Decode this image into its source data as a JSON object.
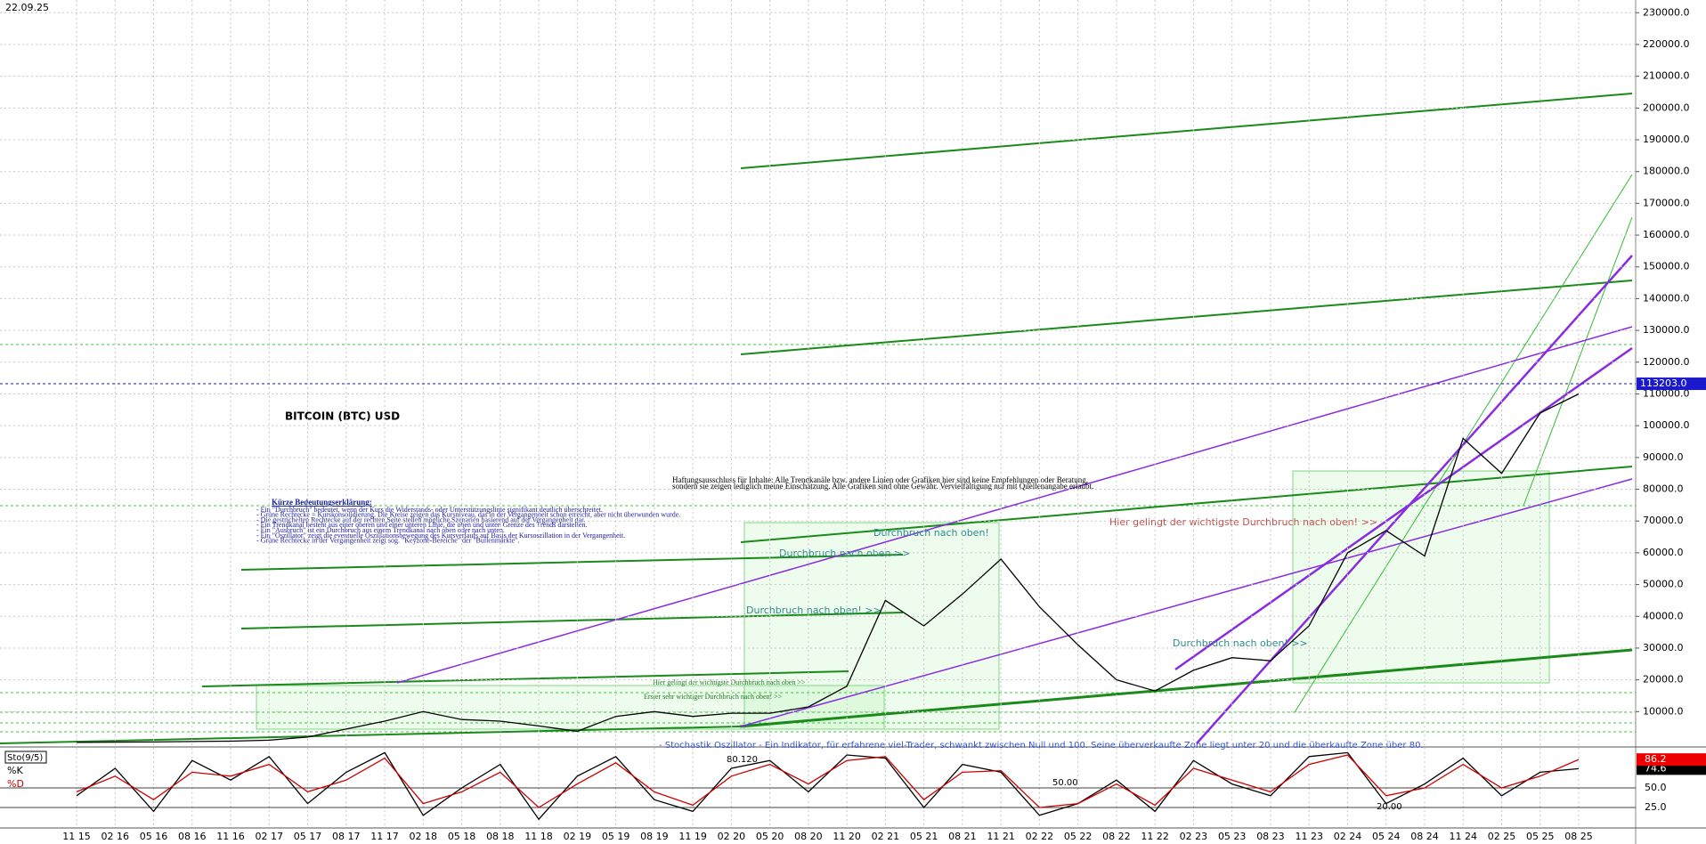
{
  "date_label": "22.09.25",
  "chart_data": [
    {
      "type": "line",
      "title": "BITCOIN (BTC) USD",
      "categories": [
        "11 15",
        "02 16",
        "05 16",
        "08 16",
        "11 16",
        "02 17",
        "05 17",
        "08 17",
        "11 17",
        "02 18",
        "05 18",
        "08 18",
        "11 18",
        "02 19",
        "05 19",
        "08 19",
        "11 19",
        "02 20",
        "05 20",
        "08 20",
        "11 20",
        "02 21",
        "05 21",
        "08 21",
        "11 21",
        "02 22",
        "05 22",
        "08 22",
        "11 22",
        "02 23",
        "05 23",
        "08 23",
        "11 23",
        "02 24",
        "05 24",
        "08 24",
        "11 24",
        "02 25",
        "05 25",
        "08 25"
      ],
      "series": [
        {
          "name": "BTC",
          "color": "#000000",
          "values": [
            350,
            400,
            450,
            600,
            700,
            1000,
            2000,
            4500,
            7000,
            10000,
            7500,
            7000,
            5500,
            3800,
            8500,
            10000,
            8500,
            9500,
            9500,
            11500,
            18000,
            45000,
            37000,
            47000,
            58000,
            43000,
            31000,
            20000,
            16500,
            23000,
            27000,
            26000,
            37000,
            60000,
            67000,
            59000,
            96000,
            85000,
            104000,
            110000
          ]
        }
      ],
      "last_price": {
        "value": 113203,
        "label": "113203.0"
      },
      "ylim": [
        0,
        234000
      ],
      "yticks": [
        {
          "value": 10000,
          "label": "10000.0"
        },
        {
          "value": 20000,
          "label": "20000.0"
        },
        {
          "value": 30000,
          "label": "30000.0"
        },
        {
          "value": 40000,
          "label": "40000.0"
        },
        {
          "value": 50000,
          "label": "50000.0"
        },
        {
          "value": 60000,
          "label": "60000.0"
        },
        {
          "value": 70000,
          "label": "70000.0"
        },
        {
          "value": 80000,
          "label": "80000.0"
        },
        {
          "value": 90000,
          "label": "90000.0"
        },
        {
          "value": 100000,
          "label": "100000.0"
        },
        {
          "value": 110000,
          "label": "110000.0"
        },
        {
          "value": 120000,
          "label": "120000.0"
        },
        {
          "value": 130000,
          "label": "130000.0"
        },
        {
          "value": 140000,
          "label": "140000.0"
        },
        {
          "value": 150000,
          "label": "150000.0"
        },
        {
          "value": 160000,
          "label": "160000.0"
        },
        {
          "value": 170000,
          "label": "170000.0"
        },
        {
          "value": 180000,
          "label": "180000.0"
        },
        {
          "value": 190000,
          "label": "190000.0"
        },
        {
          "value": 200000,
          "label": "200000.0"
        },
        {
          "value": 210000,
          "label": "210000.0"
        },
        {
          "value": 220000,
          "label": "220000.0"
        },
        {
          "value": 230000,
          "label": "230000.0"
        }
      ],
      "grid": true,
      "legend_title": "Kürze Bedeutungserklärung:",
      "legend_lines": [
        "- Ein \"Durchbruch\" bedeutet, wenn der Kurs die Widerstands- oder Unterstützungslinie signifikant deutlich überschreitet.",
        "- Grüne Rechtecke = Kurskonsolidierung. Die Kreise zeigen das Kursniveau, das in der Vergangenheit schon erreicht, aber nicht überwunden wurde.",
        "- Die gestrichelten Rechtecke auf der rechten Seite stellen mögliche Szenarien basierend auf der Vergangenheit dar.",
        "- Ein Trendkanal besteht aus einer oberen und einer unteren Linie, die oben und unten Grenze des Trends darstellen.",
        "- Ein \"Ausbruch\" ist ein Durchbruch aus einem Trendkanal nach oben oder nach unten.",
        "- Ein \"Oszillator\" zeigt die eventuelle Oszillationsbewegung des Kursverlaufs auf Basis der Kursoszillation in der Vergangenheit.",
        "- Grüne Rechtecke in der Vergangenheit zeigt sog. \"Keyzone-Bereiche\" der \"Bullenmärkte\"."
      ],
      "annotations": [
        "Haftungsausschluss für Inhalte: Alle Trendkanäle bzw. andere Linien oder Grafiken hier sind keine Empfehlungen oder Beratung,",
        "sondern sie zeigen lediglich meine Einschätzung. Alle Grafiken sind ohne Gewähr. Vervielfältigung nur mit Quellenangabe erlaubt.",
        "Durchbruch nach oben!",
        "Durchbruch nach oben >>",
        "Durchbruch nach oben! >>",
        "Hier gelingt der wichtigste Durchbruch nach oben! >>",
        "Durchbruch nach oben! >>",
        "Hier gelingt der wichtigste Durchbruch nach oben >>",
        "Erster sehr wichtiger Durchbruch nach oben! >>"
      ]
    },
    {
      "type": "line",
      "title": "Sto(9/5)",
      "series": [
        {
          "name": "%K",
          "color": "#000000",
          "values": [
            40,
            75,
            20,
            85,
            60,
            90,
            30,
            70,
            95,
            15,
            50,
            80,
            10,
            65,
            90,
            35,
            20,
            75,
            85,
            45,
            92,
            88,
            25,
            80,
            70,
            15,
            30,
            60,
            20,
            85,
            55,
            40,
            90,
            95,
            30,
            55,
            88,
            40,
            70,
            74.6
          ]
        },
        {
          "name": "%D",
          "color": "#cc0000",
          "values": [
            45,
            65,
            35,
            70,
            65,
            80,
            45,
            60,
            88,
            30,
            45,
            70,
            25,
            55,
            82,
            45,
            28,
            65,
            80,
            55,
            85,
            90,
            35,
            70,
            72,
            25,
            30,
            55,
            28,
            75,
            60,
            45,
            80,
            92,
            40,
            50,
            80,
            50,
            65,
            86.2
          ]
        }
      ],
      "ylim": [
        0,
        100
      ],
      "yticks": [
        {
          "value": 25,
          "label": "25.0"
        },
        {
          "value": 50,
          "label": "50.0"
        }
      ],
      "annotations": [
        "- Stochastik Oszillator - Ein Indikator, für erfahrene viel-Trader, schwankt zwischen Null und 100. Seine überverkaufte Zone liegt unter 20 und die überkaufte Zone über 80.",
        "80.120",
        "50.00",
        "20.00"
      ]
    }
  ]
}
